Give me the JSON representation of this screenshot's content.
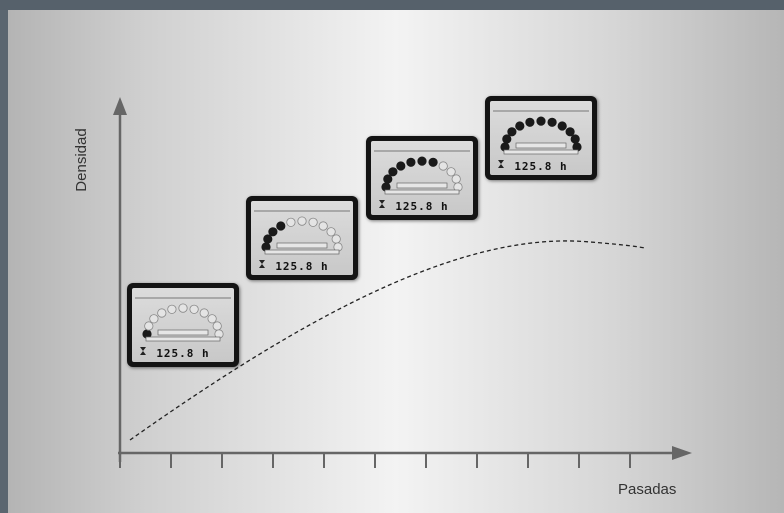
{
  "axes": {
    "y_label": "Densidad",
    "x_label": "Pasadas"
  },
  "gauges": [
    {
      "hours": "125.8 h",
      "filled_dots": 1
    },
    {
      "hours": "125.8 h",
      "filled_dots": 4
    },
    {
      "hours": "125.8 h",
      "filled_dots": 7
    },
    {
      "hours": "125.8 h",
      "filled_dots": 11
    }
  ],
  "colors": {
    "background": "#5b6670",
    "panel_center": "#f3f3f3",
    "axis": "#666666",
    "curve": "#222222",
    "gauge_frame": "#141414"
  }
}
